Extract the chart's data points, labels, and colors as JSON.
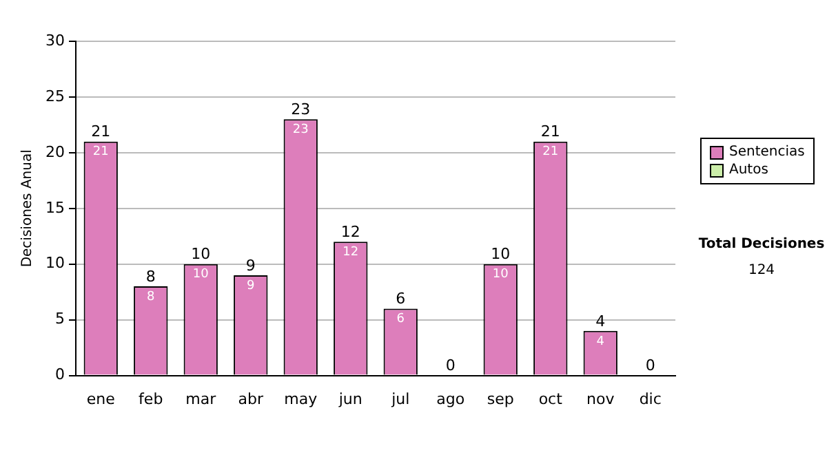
{
  "chart_data": {
    "type": "bar",
    "stacked": true,
    "ylabel": "Decisiones Anual",
    "categories": [
      "ene",
      "feb",
      "mar",
      "abr",
      "may",
      "jun",
      "jul",
      "ago",
      "sep",
      "oct",
      "nov",
      "dic"
    ],
    "series": [
      {
        "name": "Sentencias",
        "color": "#dd7ebb",
        "values": [
          21,
          8,
          10,
          9,
          23,
          12,
          6,
          0,
          10,
          21,
          4,
          0
        ],
        "value_labels": [
          "21",
          "8",
          "10",
          "9",
          "23",
          "12",
          "6",
          null,
          "10",
          "21",
          "4",
          null
        ]
      },
      {
        "name": "Autos",
        "color": "#cceeaa",
        "values": [
          0,
          0,
          0,
          0,
          0,
          0,
          0,
          0,
          0,
          0,
          0,
          0
        ]
      }
    ],
    "totals": [
      "21",
      "8",
      "10",
      "9",
      "23",
      "12",
      "6",
      "0",
      "10",
      "21",
      "4",
      "0"
    ],
    "ylim": [
      0,
      30
    ],
    "yticks": [
      0,
      5,
      10,
      15,
      20,
      25,
      30
    ],
    "grid": "y",
    "legend": "right",
    "annotations": [
      "Total Decisiones",
      "124"
    ]
  }
}
